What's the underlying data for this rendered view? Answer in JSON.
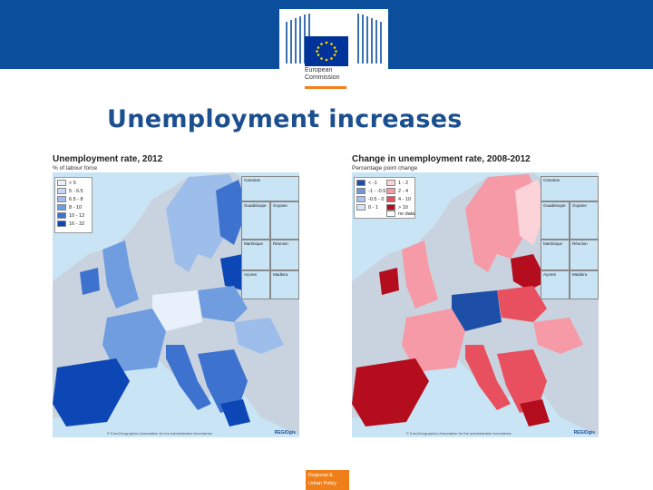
{
  "header": {
    "logo_line1": "European",
    "logo_line2": "Commission",
    "colors": {
      "bar": "#0b4f9c",
      "accent": "#f07f1a",
      "eu_flag": "#003399"
    }
  },
  "slide": {
    "title": "Unemployment increases"
  },
  "maps": [
    {
      "title": "Unemployment rate, 2012",
      "subtitle": "% of labour force",
      "legend": [
        {
          "label": "< 5",
          "color": "#e8f0fb"
        },
        {
          "label": "5 - 6.5",
          "color": "#c6d8f3"
        },
        {
          "label": "6.5 - 8",
          "color": "#9dbdea"
        },
        {
          "label": "8 - 10",
          "color": "#6f9de0"
        },
        {
          "label": "10 - 12",
          "color": "#3d73cf"
        },
        {
          "label": "16 - 32",
          "color": "#0d47b5"
        }
      ],
      "insets": [
        "Canarias",
        "Guadeloupe",
        "Guyane",
        "Martinique",
        "Réunion",
        "Açores",
        "Madeira"
      ],
      "footer": "© EuroGeographics Association for the administrative boundaries",
      "source": "REGIOgis"
    },
    {
      "title": "Change in unemployment rate, 2008-2012",
      "subtitle": "Percentage point change",
      "legend": [
        {
          "label": "< -1",
          "color": "#1d4fa8"
        },
        {
          "label": "-1 - -0.5",
          "color": "#6f96d6"
        },
        {
          "label": "-0.5 - 0",
          "color": "#a9c3ea"
        },
        {
          "label": "0 - 1",
          "color": "#d8e4f5"
        },
        {
          "label": "1 - 2",
          "color": "#fbd3d8"
        },
        {
          "label": "2 - 4",
          "color": "#f59aa6"
        },
        {
          "label": "4 - 10",
          "color": "#e8505f"
        },
        {
          "label": "> 10",
          "color": "#b30d1e"
        },
        {
          "label": "no data",
          "color": "#ffffff"
        }
      ],
      "insets": [
        "Canarias",
        "Guadeloupe",
        "Guyane",
        "Martinique",
        "Réunion",
        "Açores",
        "Madeira"
      ],
      "footer": "© EuroGeographics Association for the administrative boundaries",
      "source": "REGIOgis"
    }
  ],
  "footer": {
    "line1": "Regional &",
    "line2": "Urban Policy"
  }
}
